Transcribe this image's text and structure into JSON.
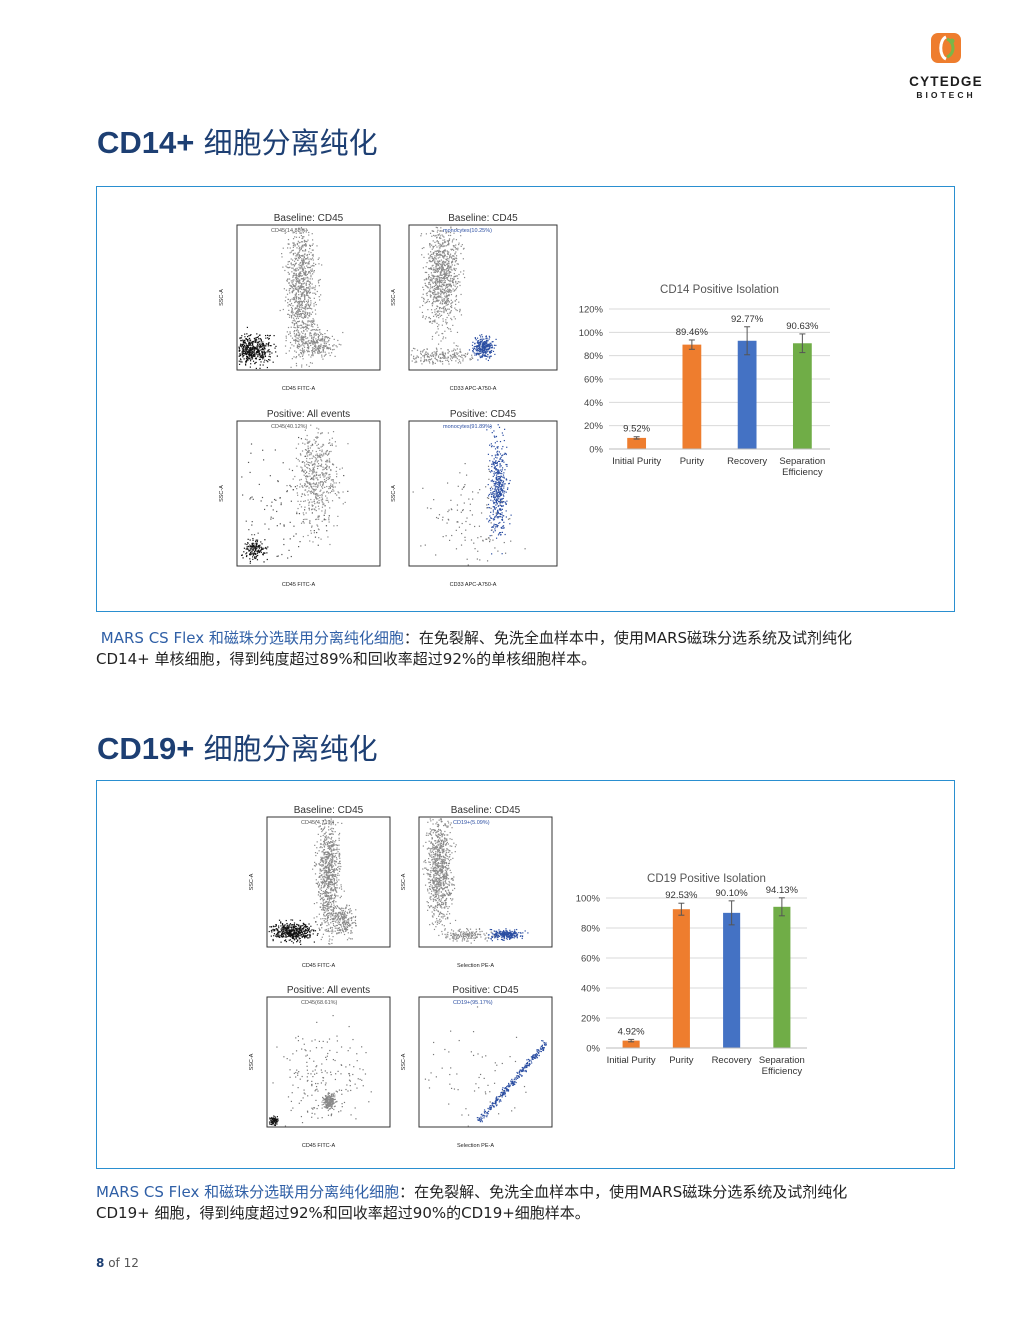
{
  "header": {
    "logo_name": "CYTEDGE",
    "logo_sub": "BIOTECH",
    "colors": {
      "brand_orange": "#ee7d2e",
      "brand_green": "#7ab648",
      "title_blue": "#1d3f73"
    }
  },
  "sections": [
    {
      "title_bold": "CD14+",
      "title_rest": "细胞分离纯化",
      "flow_plots": [
        {
          "title": "Baseline: CD45",
          "gate": "CD45(14.88%)",
          "xlabel": "CD45 FITC-A",
          "ylabel": "SSC-A"
        },
        {
          "title": "Baseline: CD45",
          "gate": "monocytes(10.25%)",
          "xlabel": "CD33 APC-A750-A",
          "ylabel": "SSC-A"
        },
        {
          "title": "Positive: All events",
          "gate": "CD45(40.12%)",
          "xlabel": "CD45 FITC-A",
          "ylabel": "SSC-A"
        },
        {
          "title": "Positive: CD45",
          "gate": "monocytes(91.89%)",
          "xlabel": "CD33 APC-A750-A",
          "ylabel": "SSC-A"
        }
      ],
      "caption_highlight": "MARS CS Flex 和磁珠分选联用分离纯化细胞",
      "caption_line1": "：在免裂解、免洗全血样本中，使用MARS磁珠分选系统及试剂纯化",
      "caption_line2": "CD14+ 单核细胞，得到纯度超过89%和回收率超过92%的单核细胞样本。"
    },
    {
      "title_bold": "CD19+",
      "title_rest": "细胞分离纯化",
      "flow_plots": [
        {
          "title": "Baseline: CD45",
          "gate": "CD45(4.71%)",
          "xlabel": "CD45 FITC-A",
          "ylabel": "SSC-A"
        },
        {
          "title": "Baseline: CD45",
          "gate": "CD19+(5.09%)",
          "xlabel": "Selection PE-A",
          "ylabel": "SSC-A"
        },
        {
          "title": "Positive: All events",
          "gate": "CD45(68.61%)",
          "xlabel": "CD45 FITC-A",
          "ylabel": "SSC-A"
        },
        {
          "title": "Positive: CD45",
          "gate": "CD19+(95.17%)",
          "xlabel": "Selection PE-A",
          "ylabel": "SSC-A"
        }
      ],
      "caption_highlight": "MARS CS Flex 和磁珠分选联用分离纯化细胞",
      "caption_line1": "：在免裂解、免洗全血样本中，使用MARS磁珠分选系统及试剂纯化",
      "caption_line2": "CD19+ 细胞，得到纯度超过92%和回收率超过90%的CD19+细胞样本。"
    }
  ],
  "chart_data": [
    {
      "type": "bar",
      "title": "CD14 Positive Isolation",
      "categories": [
        "Initial Purity",
        "Purity",
        "Recovery",
        "Separation Efficiency"
      ],
      "values": [
        9.52,
        89.46,
        92.77,
        90.63
      ],
      "labels": [
        "9.52%",
        "89.46%",
        "92.77%",
        "90.63%"
      ],
      "errors": [
        1.0,
        4.0,
        12.0,
        8.0
      ],
      "colors": [
        "#ee7d2e",
        "#ee7d2e",
        "#4472c4",
        "#70ad47"
      ],
      "ylim": [
        0,
        120
      ],
      "yticks": [
        "0%",
        "20%",
        "40%",
        "60%",
        "80%",
        "100%",
        "120%"
      ],
      "grid": true
    },
    {
      "type": "bar",
      "title": "CD19 Positive Isolation",
      "categories": [
        "Initial Purity",
        "Purity",
        "Recovery",
        "Separation Efficiency"
      ],
      "values": [
        4.92,
        92.53,
        90.1,
        94.13
      ],
      "labels": [
        "4.92%",
        "92.53%",
        "90.10%",
        "94.13%"
      ],
      "errors": [
        0.8,
        4.0,
        8.0,
        6.0
      ],
      "colors": [
        "#ee7d2e",
        "#ee7d2e",
        "#4472c4",
        "#70ad47"
      ],
      "ylim": [
        0,
        100
      ],
      "yticks": [
        "0%",
        "20%",
        "40%",
        "60%",
        "80%",
        "100%"
      ],
      "grid": true
    }
  ],
  "footer": {
    "page": "8",
    "of_text": "of 12"
  }
}
